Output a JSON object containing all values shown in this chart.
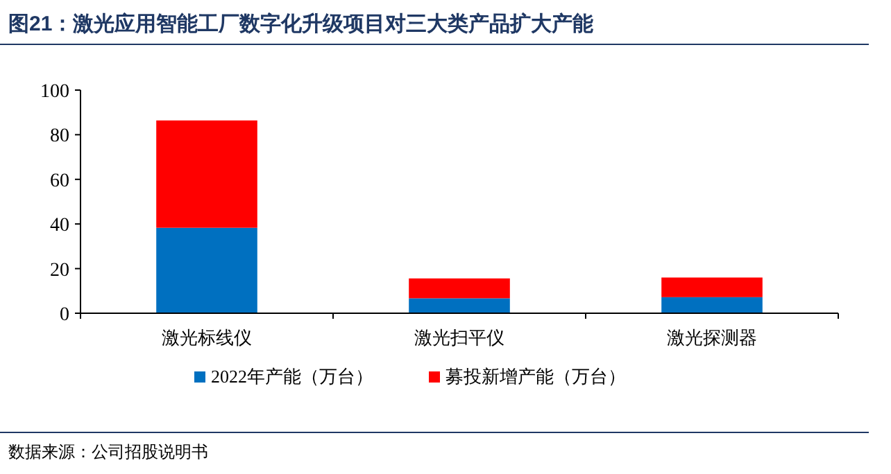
{
  "chart_data": {
    "type": "bar",
    "title": "图21：激光应用智能工厂数字化升级项目对三大类产品扩大产能",
    "categories": [
      "激光标线仪",
      "激光扫平仪",
      "激光探测器"
    ],
    "series": [
      {
        "name": "2022年产能（万台）",
        "color": "#0070c0",
        "values": [
          38.3,
          6.7,
          7.2
        ]
      },
      {
        "name": "募投新增产能（万台）",
        "color": "#ff0000",
        "values": [
          48.1,
          8.9,
          8.8
        ]
      }
    ],
    "stacked": true,
    "ylim": [
      0,
      100
    ],
    "yticks": [
      0,
      20,
      40,
      60,
      80,
      100
    ],
    "grid": false,
    "legend": "bottom",
    "annotations": [
      "数据来源：公司招股说明书"
    ]
  }
}
